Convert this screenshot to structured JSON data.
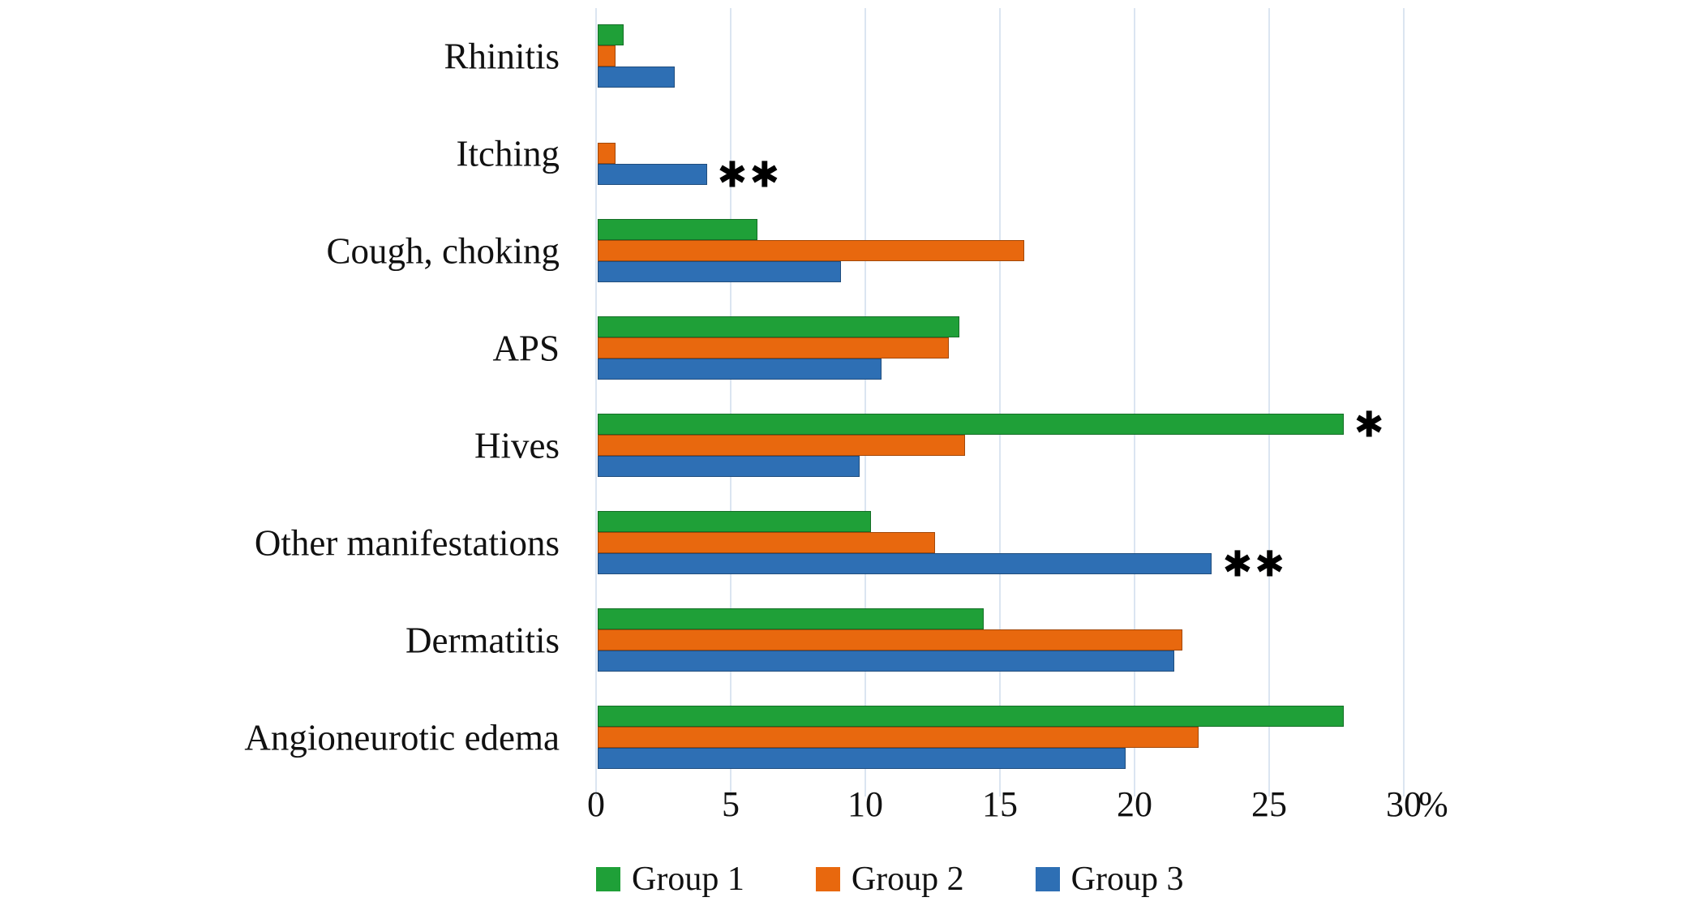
{
  "figure": {
    "background": "#ffffff",
    "text_color": "#111111"
  },
  "chart_data": {
    "type": "bar",
    "orientation": "horizontal",
    "title": "",
    "categories": [
      "Rhinitis",
      "Itching",
      "Cough, choking",
      "APS",
      "Hives",
      "Other manifestations",
      "Dermatitis",
      "Angioneurotic edema"
    ],
    "series": [
      {
        "name": "Group 1",
        "color": "#1FA038",
        "values": [
          0.9,
          0,
          5.9,
          13.4,
          27.7,
          10.1,
          14.3,
          27.7
        ]
      },
      {
        "name": "Group 2",
        "color": "#E8680E",
        "values": [
          0.6,
          0.6,
          15.8,
          13.0,
          13.6,
          12.5,
          21.7,
          22.3
        ]
      },
      {
        "name": "Group 3",
        "color": "#2E6FB4",
        "values": [
          2.8,
          4.0,
          9.0,
          10.5,
          9.7,
          22.8,
          21.4,
          19.6
        ]
      }
    ],
    "annotations": [
      {
        "category_index": 1,
        "series_index": 2,
        "text": "**",
        "glyph": "✱✱"
      },
      {
        "category_index": 4,
        "series_index": 0,
        "text": "*",
        "glyph": "✱"
      },
      {
        "category_index": 5,
        "series_index": 2,
        "text": "**",
        "glyph": "✱✱"
      }
    ],
    "xlim": [
      0,
      30
    ],
    "xticks": [
      0,
      5,
      10,
      15,
      20,
      25,
      30
    ],
    "tick_labels": [
      "0",
      "5",
      "10",
      "15",
      "20",
      "25",
      "30"
    ],
    "x_unit_label": "%",
    "grid": true,
    "grid_color": "#dbe5f1",
    "legend_position": "bottom"
  }
}
